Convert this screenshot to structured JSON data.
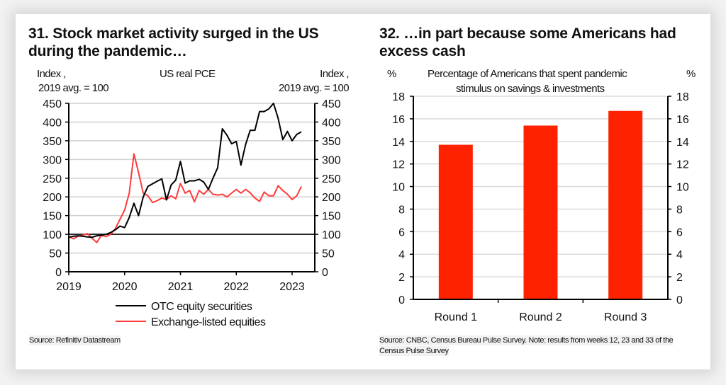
{
  "chart_data": [
    {
      "type": "line",
      "title": "31. Stock market activity surged in the US during the pandemic…",
      "subtitle": "US real PCE",
      "ylabel_left": [
        "Index ,",
        "2019 avg. = 100"
      ],
      "ylabel_right": [
        "Index ,",
        "2019 avg. = 100"
      ],
      "ylim": [
        0,
        450
      ],
      "yticks": [
        0,
        50,
        100,
        150,
        200,
        250,
        300,
        350,
        400,
        450
      ],
      "xticks": [
        "2019",
        "2020",
        "2021",
        "2022",
        "2023"
      ],
      "x_start": "2019-01",
      "x_frequency": "monthly",
      "reference_line": 100,
      "grid": true,
      "legend_position": "bottom-center",
      "series": [
        {
          "name": "OTC equity securities",
          "color": "#000000",
          "values": [
            92,
            95,
            96,
            95,
            93,
            92,
            96,
            98,
            100,
            105,
            112,
            122,
            118,
            145,
            183,
            150,
            200,
            228,
            235,
            242,
            248,
            192,
            232,
            245,
            295,
            237,
            243,
            243,
            247,
            240,
            220,
            250,
            278,
            382,
            365,
            342,
            348,
            285,
            340,
            378,
            378,
            428,
            428,
            435,
            450,
            410,
            353,
            375,
            350,
            367,
            374
          ]
        },
        {
          "name": "Exchange-listed equities",
          "color": "#ff3b3b",
          "values": [
            95,
            88,
            95,
            98,
            102,
            90,
            78,
            97,
            94,
            100,
            115,
            140,
            165,
            210,
            315,
            265,
            210,
            203,
            185,
            190,
            197,
            193,
            203,
            195,
            236,
            210,
            217,
            187,
            217,
            207,
            220,
            207,
            205,
            207,
            200,
            210,
            220,
            210,
            220,
            211,
            197,
            188,
            213,
            203,
            203,
            230,
            217,
            207,
            193,
            203,
            228
          ]
        }
      ],
      "source": "Source: Refinitiv Datastream"
    },
    {
      "type": "bar",
      "title": "32. …in part because some Americans had excess cash",
      "subtitle": [
        "Percentage of Americans that spent pandemic",
        "stimulus on savings & investments"
      ],
      "ylabel_left": "%",
      "ylabel_right": "%",
      "ylim": [
        0,
        18
      ],
      "yticks": [
        0,
        2,
        4,
        6,
        8,
        10,
        12,
        14,
        16,
        18
      ],
      "categories": [
        "Round 1",
        "Round 2",
        "Round 3"
      ],
      "values": [
        13.7,
        15.4,
        16.7
      ],
      "bar_color": "#ff2200",
      "grid": true,
      "source": [
        "Source: CNBC, Census Bureau Pulse Survey. Note: results from weeks 12, 23 and 33 of the",
        "Census Pulse Survey"
      ]
    }
  ]
}
